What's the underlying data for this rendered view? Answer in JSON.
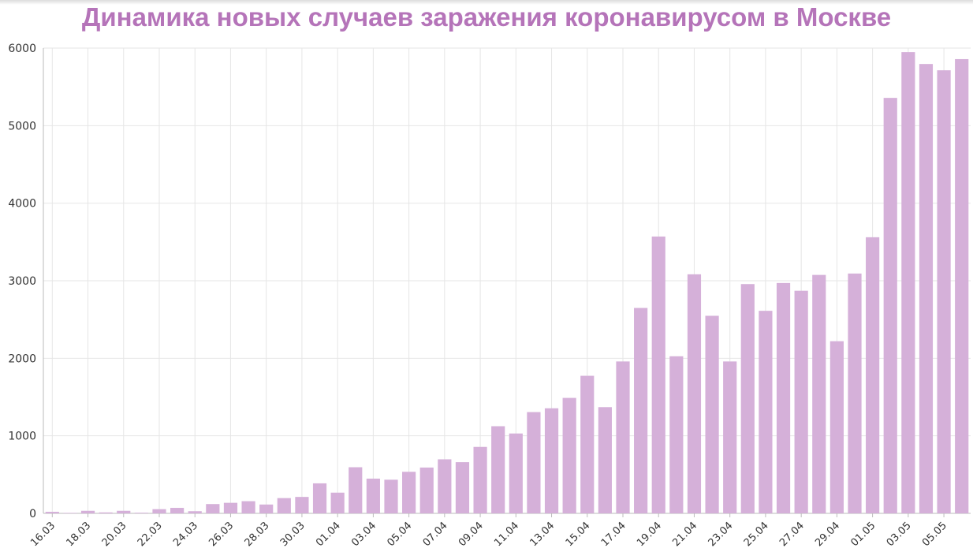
{
  "chart_data": {
    "type": "bar",
    "title": "Динамика новых случаев заражения коронавирусом в Москве",
    "xlabel": "",
    "ylabel": "",
    "ylim": [
      0,
      6000
    ],
    "yticks": [
      "0",
      "1000",
      "2000",
      "3000",
      "4000",
      "5000",
      "6000"
    ],
    "grid": true,
    "colors": {
      "bar": "#d5b0d9",
      "title": "#b574b9",
      "grid": "#e6e6e6",
      "axis": "#bbbbbb"
    },
    "categories": [
      "16.03",
      "17.03",
      "18.03",
      "19.03",
      "20.03",
      "21.03",
      "22.03",
      "23.03",
      "24.03",
      "25.03",
      "26.03",
      "27.03",
      "28.03",
      "29.03",
      "30.03",
      "31.03",
      "01.04",
      "02.04",
      "03.04",
      "04.04",
      "05.04",
      "06.04",
      "07.04",
      "08.04",
      "09.04",
      "10.04",
      "11.04",
      "12.04",
      "13.04",
      "14.04",
      "15.04",
      "16.04",
      "17.04",
      "18.04",
      "19.04",
      "20.04",
      "21.04",
      "22.04",
      "23.04",
      "24.04",
      "25.04",
      "26.04",
      "27.04",
      "28.04",
      "29.04",
      "30.04",
      "01.05",
      "02.05",
      "03.05",
      "04.05",
      "05.05",
      "06.05"
    ],
    "values": [
      20,
      6,
      33,
      12,
      33,
      8,
      54,
      71,
      28,
      120,
      136,
      157,
      114,
      197,
      212,
      387,
      267,
      595,
      448,
      434,
      536,
      591,
      697,
      660,
      857,
      1124,
      1030,
      1306,
      1355,
      1489,
      1774,
      1370,
      1959,
      2649,
      3570,
      2026,
      3083,
      2548,
      1959,
      2957,
      2612,
      2971,
      2871,
      3075,
      2220,
      3093,
      3561,
      5358,
      5948,
      5795,
      5714,
      5858
    ],
    "xtick_labels": [
      "16.03",
      "18.03",
      "20.03",
      "22.03",
      "24.03",
      "26.03",
      "28.03",
      "30.03",
      "01.04",
      "03.04",
      "05.04",
      "07.04",
      "09.04",
      "11.04",
      "13.04",
      "15.04",
      "17.04",
      "19.04",
      "21.04",
      "23.04",
      "25.04",
      "27.04",
      "29.04",
      "01.05",
      "03.05",
      "05.05"
    ]
  }
}
